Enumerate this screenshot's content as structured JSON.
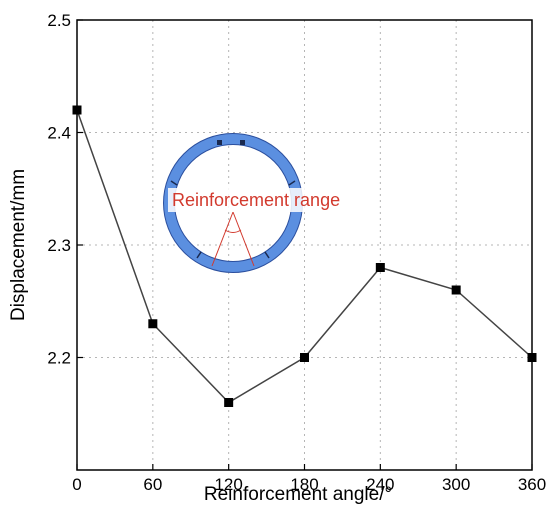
{
  "chart_data": {
    "type": "line",
    "xlabel": "Reinforcement angle/°",
    "ylabel": "Displacement/mm",
    "xlim": [
      0,
      360
    ],
    "ylim": [
      2.1,
      2.5
    ],
    "x_ticks": [
      0,
      60,
      120,
      180,
      240,
      300,
      360
    ],
    "y_ticks": [
      2.2,
      2.3,
      2.4,
      2.5
    ],
    "x_tick_labels": [
      "0",
      "60",
      "120",
      "180",
      "240",
      "300",
      "360"
    ],
    "y_tick_labels": [
      "2.2",
      "2.3",
      "2.4",
      "2.5"
    ],
    "grid": true,
    "series": [
      {
        "x": [
          0,
          60,
          120,
          180,
          240,
          300,
          360
        ],
        "y": [
          2.42,
          2.23,
          2.16,
          2.2,
          2.28,
          2.26,
          2.2
        ],
        "color": "#444444",
        "marker": "square"
      }
    ],
    "annotations": [
      {
        "text": "Reinforcement range",
        "color": "#d23a2e"
      }
    ],
    "inset": {
      "ring_color": "#5b8fe0",
      "ring_outline": "#2b4f9e"
    }
  }
}
